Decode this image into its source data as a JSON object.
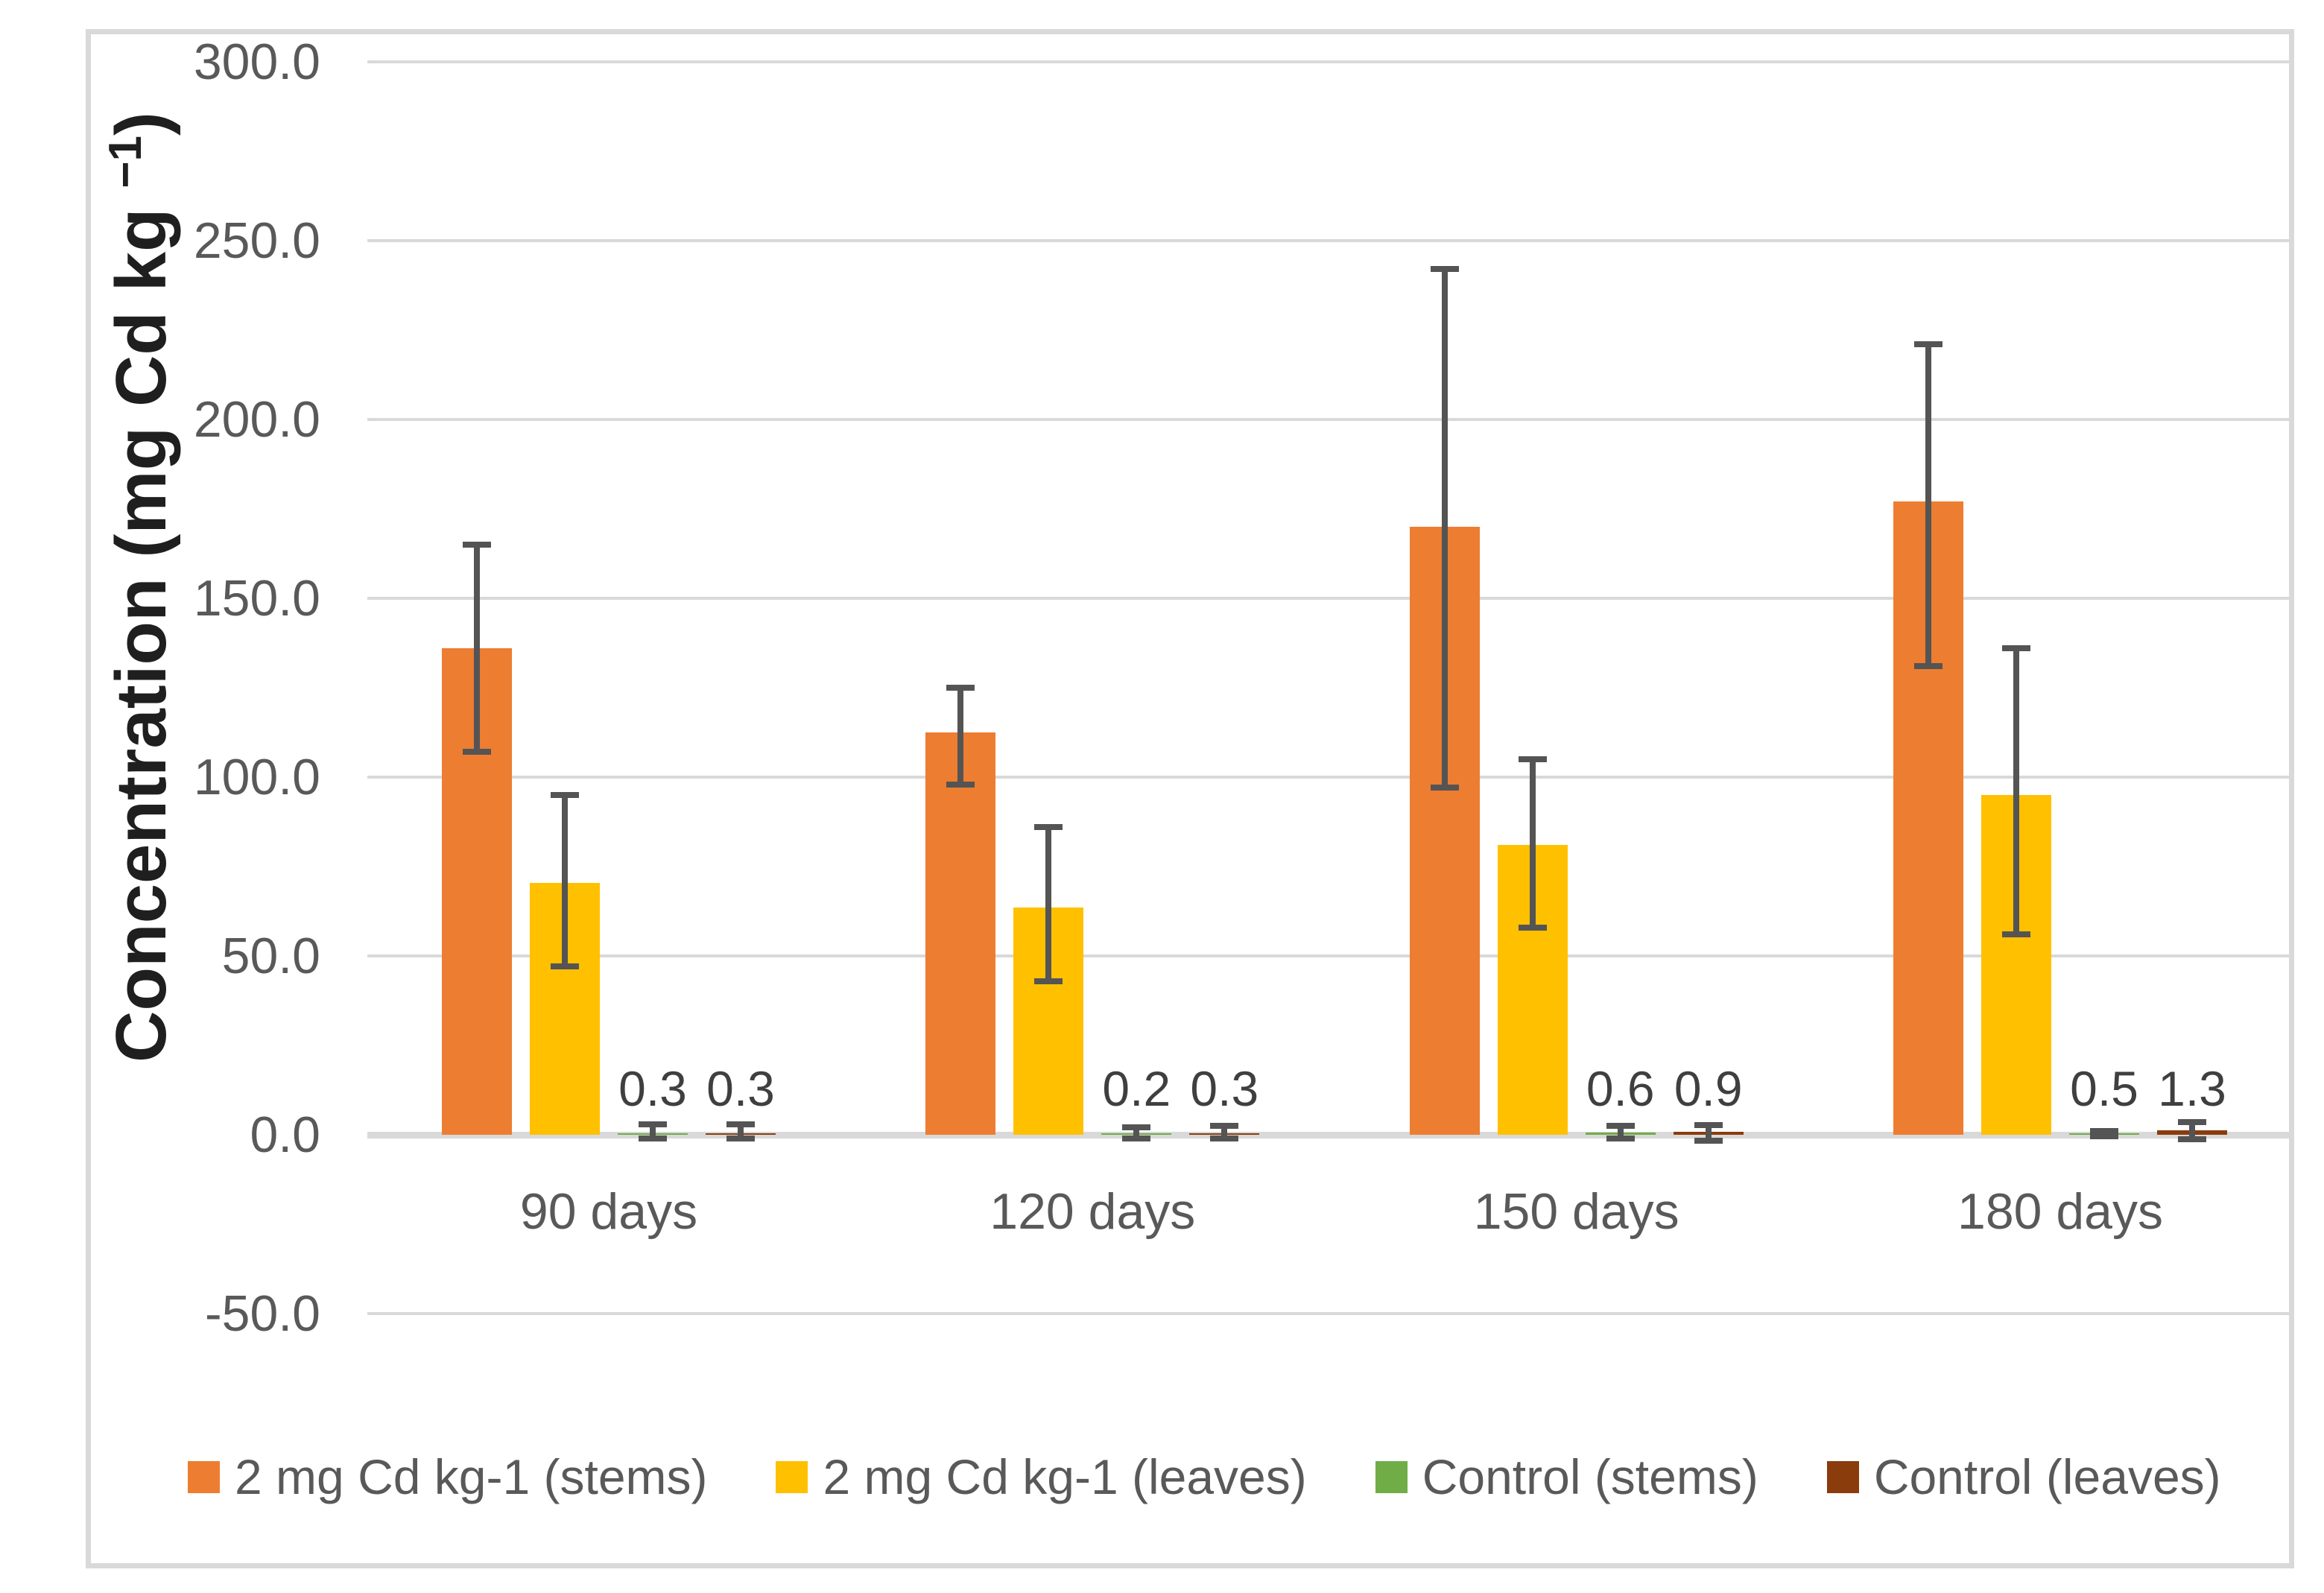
{
  "figure": {
    "ylabel_text": "Concentration (mg Cd kg ",
    "ylabel_sup": "−1",
    "ylabel_end": ")"
  },
  "chart_data": {
    "type": "bar",
    "title": "",
    "xlabel": "",
    "ylabel": "Concentration (mg Cd kg −1)",
    "ylim": [
      -50,
      300
    ],
    "grid": true,
    "legend_position": "bottom",
    "categories": [
      "90 days",
      "120 days",
      "150 days",
      "180 days"
    ],
    "yticks": [
      300,
      250,
      200,
      150,
      100,
      50,
      0,
      -50
    ],
    "ytick_labels": [
      "300.0",
      "250.0",
      "200.0",
      "150.0",
      "100.0",
      "50.0",
      "0.0",
      "-50.0"
    ],
    "error_bar_color": "#545454",
    "gridline_color": "#D9D9D9",
    "series": [
      {
        "name": "2 mg Cd kg-1 (stems)",
        "color": "#ED7D31",
        "values": [
          136,
          112.5,
          170,
          177
        ],
        "err_hi": [
          165,
          125,
          242,
          221
        ],
        "err_lo": [
          107,
          98,
          97,
          131
        ],
        "labels": null
      },
      {
        "name": "2 mg Cd kg-1 (leaves)",
        "color": "#FFC000",
        "values": [
          70.5,
          63.5,
          81,
          95
        ],
        "err_hi": [
          95,
          86,
          105,
          136
        ],
        "err_lo": [
          47,
          43,
          58,
          56
        ],
        "labels": null
      },
      {
        "name": "Control (stems)",
        "color": "#70AD47",
        "values": [
          0.3,
          0.2,
          0.6,
          0.5
        ],
        "err_hi": [
          2.9,
          2.0,
          2.5,
          1.0
        ],
        "err_lo": [
          -1.0,
          -1.0,
          -1.0,
          -0.5
        ],
        "labels": [
          "0.3",
          "0.2",
          "0.6",
          "0.5"
        ]
      },
      {
        "name": "Control (leaves)",
        "color": "#8B3C0C",
        "values": [
          0.3,
          0.3,
          0.9,
          1.3
        ],
        "err_hi": [
          2.9,
          2.5,
          2.7,
          3.6
        ],
        "err_lo": [
          -1.0,
          -1.0,
          -1.7,
          -1.2
        ],
        "labels": [
          "0.3",
          "0.3",
          "0.9",
          "1.3"
        ]
      }
    ]
  }
}
